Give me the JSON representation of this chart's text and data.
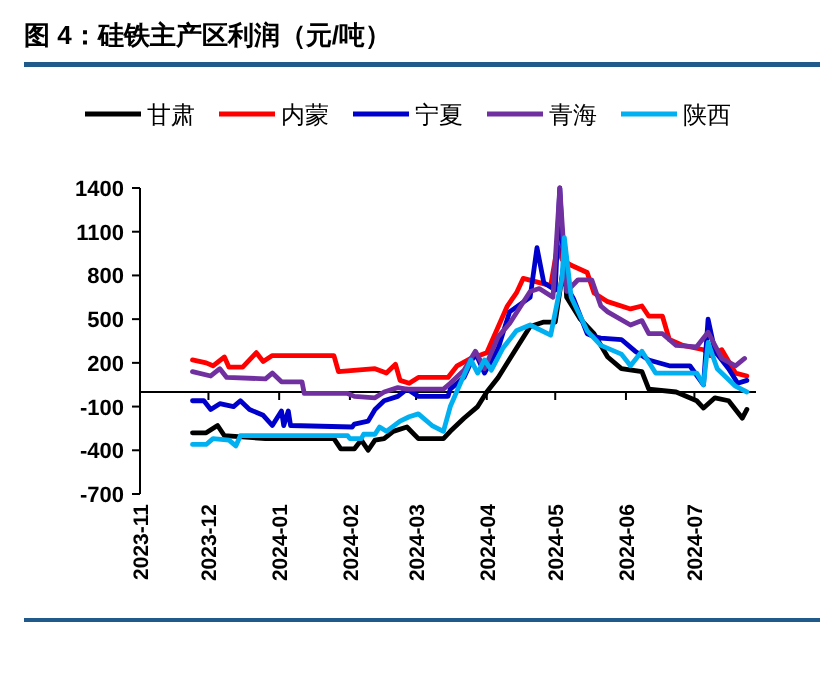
{
  "chart_data": {
    "type": "line",
    "title": "图 4：硅铁主产区利润（元/吨）",
    "legend": "top",
    "line_style": "solid",
    "marker": "none",
    "grid": false,
    "ylim": [
      -700,
      1400
    ],
    "yticks": [
      -700,
      -400,
      -100,
      200,
      500,
      800,
      1100,
      1400
    ],
    "xlim": [
      "2023-11-01",
      "2024-07-28"
    ],
    "xticks": [
      {
        "value": "2023-11-01",
        "label": "2023-11"
      },
      {
        "value": "2023-12-01",
        "label": "2023-12"
      },
      {
        "value": "2024-01-01",
        "label": "2024-01"
      },
      {
        "value": "2024-02-01",
        "label": "2024-02"
      },
      {
        "value": "2024-03-01",
        "label": "2024-03"
      },
      {
        "value": "2024-04-01",
        "label": "2024-04"
      },
      {
        "value": "2024-05-01",
        "label": "2024-05"
      },
      {
        "value": "2024-06-01",
        "label": "2024-06"
      },
      {
        "value": "2024-07-01",
        "label": "2024-07"
      }
    ],
    "series": [
      {
        "name": "甘肃",
        "color": "#000000",
        "x": [
          "2023-11-24",
          "2023-11-30",
          "2023-12-05",
          "2023-12-08",
          "2023-12-26",
          "2024-01-25",
          "2024-01-28",
          "2024-02-03",
          "2024-02-06",
          "2024-02-09",
          "2024-02-12",
          "2024-02-16",
          "2024-02-20",
          "2024-02-26",
          "2024-03-02",
          "2024-03-13",
          "2024-03-16",
          "2024-03-22",
          "2024-03-28",
          "2024-04-01",
          "2024-04-06",
          "2024-04-14",
          "2024-04-20",
          "2024-04-26",
          "2024-05-01",
          "2024-05-05",
          "2024-05-06",
          "2024-05-12",
          "2024-05-18",
          "2024-05-24",
          "2024-05-30",
          "2024-06-08",
          "2024-06-11",
          "2024-06-23",
          "2024-07-02",
          "2024-07-05",
          "2024-07-10",
          "2024-07-16",
          "2024-07-22",
          "2024-07-24"
        ],
        "values": [
          -280,
          -280,
          -230,
          -300,
          -320,
          -320,
          -390,
          -390,
          -330,
          -400,
          -330,
          -320,
          -270,
          -240,
          -320,
          -320,
          -270,
          -180,
          -100,
          0,
          100,
          300,
          450,
          480,
          480,
          900,
          650,
          500,
          400,
          240,
          160,
          140,
          20,
          0,
          -60,
          -110,
          -40,
          -60,
          -180,
          -120
        ]
      },
      {
        "name": "内蒙",
        "color": "#ff0000",
        "x": [
          "2023-11-24",
          "2023-11-30",
          "2023-12-03",
          "2023-12-08",
          "2023-12-10",
          "2023-12-16",
          "2023-12-22",
          "2023-12-25",
          "2023-12-29",
          "2024-01-25",
          "2024-01-27",
          "2024-02-12",
          "2024-02-17",
          "2024-02-21",
          "2024-02-23",
          "2024-02-27",
          "2024-03-02",
          "2024-03-15",
          "2024-03-19",
          "2024-03-25",
          "2024-04-01",
          "2024-04-10",
          "2024-04-14",
          "2024-04-17",
          "2024-04-29",
          "2024-05-02",
          "2024-05-04",
          "2024-05-08",
          "2024-05-15",
          "2024-05-18",
          "2024-05-24",
          "2024-06-03",
          "2024-06-08",
          "2024-06-11",
          "2024-06-17",
          "2024-06-20",
          "2024-06-26",
          "2024-07-05",
          "2024-07-08",
          "2024-07-13",
          "2024-07-19",
          "2024-07-24"
        ],
        "values": [
          220,
          200,
          180,
          240,
          170,
          170,
          270,
          210,
          250,
          250,
          140,
          160,
          130,
          190,
          80,
          60,
          100,
          100,
          180,
          230,
          270,
          590,
          680,
          780,
          730,
          1000,
          910,
          870,
          820,
          680,
          620,
          570,
          590,
          520,
          520,
          360,
          320,
          290,
          250,
          290,
          130,
          110
        ]
      },
      {
        "name": "宁夏",
        "color": "#0000cc",
        "x": [
          "2023-11-24",
          "2023-11-29",
          "2023-12-02",
          "2023-12-06",
          "2023-12-12",
          "2023-12-15",
          "2023-12-19",
          "2023-12-25",
          "2023-12-29",
          "2024-01-02",
          "2024-01-03",
          "2024-01-05",
          "2024-01-06",
          "2024-02-02",
          "2024-02-03",
          "2024-02-09",
          "2024-02-12",
          "2024-02-16",
          "2024-02-22",
          "2024-02-26",
          "2024-03-02",
          "2024-03-15",
          "2024-03-16",
          "2024-03-22",
          "2024-03-27",
          "2024-03-31",
          "2024-04-06",
          "2024-04-11",
          "2024-04-20",
          "2024-04-23",
          "2024-04-26",
          "2024-05-01",
          "2024-05-03",
          "2024-05-05",
          "2024-05-09",
          "2024-05-15",
          "2024-05-18",
          "2024-05-21",
          "2024-05-30",
          "2024-06-05",
          "2024-06-11",
          "2024-06-20",
          "2024-06-29",
          "2024-07-05",
          "2024-07-07",
          "2024-07-10",
          "2024-07-16",
          "2024-07-20",
          "2024-07-24"
        ],
        "values": [
          -60,
          -60,
          -120,
          -80,
          -100,
          -60,
          -120,
          -160,
          -230,
          -130,
          -230,
          -130,
          -230,
          -240,
          -220,
          -200,
          -120,
          -60,
          -30,
          20,
          -30,
          -30,
          20,
          100,
          270,
          130,
          300,
          550,
          650,
          990,
          750,
          700,
          1400,
          750,
          640,
          400,
          380,
          370,
          360,
          280,
          220,
          180,
          180,
          50,
          500,
          280,
          160,
          60,
          80
        ]
      },
      {
        "name": "青海",
        "color": "#7030a0",
        "x": [
          "2023-11-24",
          "2023-12-02",
          "2023-12-06",
          "2023-12-09",
          "2023-12-26",
          "2023-12-29",
          "2024-01-02",
          "2024-01-11",
          "2024-01-12",
          "2024-01-31",
          "2024-02-03",
          "2024-02-12",
          "2024-02-16",
          "2024-02-22",
          "2024-02-26",
          "2024-03-02",
          "2024-03-13",
          "2024-03-16",
          "2024-03-22",
          "2024-03-27",
          "2024-03-31",
          "2024-04-06",
          "2024-04-11",
          "2024-04-20",
          "2024-04-24",
          "2024-04-30",
          "2024-05-03",
          "2024-05-06",
          "2024-05-11",
          "2024-05-17",
          "2024-05-21",
          "2024-05-24",
          "2024-06-03",
          "2024-06-08",
          "2024-06-11",
          "2024-06-17",
          "2024-06-23",
          "2024-07-02",
          "2024-07-07",
          "2024-07-13",
          "2024-07-19",
          "2024-07-23"
        ],
        "values": [
          140,
          110,
          160,
          100,
          90,
          130,
          70,
          70,
          -10,
          -10,
          -30,
          -40,
          0,
          30,
          20,
          20,
          20,
          60,
          150,
          280,
          160,
          380,
          470,
          690,
          710,
          650,
          1400,
          690,
          770,
          770,
          590,
          550,
          460,
          490,
          400,
          400,
          320,
          310,
          410,
          230,
          180,
          230
        ]
      },
      {
        "name": "陕西",
        "color": "#00b0f0",
        "x": [
          "2023-11-24",
          "2023-11-30",
          "2023-12-03",
          "2023-12-10",
          "2023-12-13",
          "2023-12-15",
          "2023-12-20",
          "2024-01-31",
          "2024-02-01",
          "2024-02-06",
          "2024-02-07",
          "2024-02-12",
          "2024-02-14",
          "2024-02-17",
          "2024-02-23",
          "2024-02-27",
          "2024-03-02",
          "2024-03-08",
          "2024-03-13",
          "2024-03-16",
          "2024-03-21",
          "2024-03-25",
          "2024-03-28",
          "2024-03-31",
          "2024-04-03",
          "2024-04-08",
          "2024-04-14",
          "2024-04-20",
          "2024-04-29",
          "2024-05-04",
          "2024-05-05",
          "2024-05-08",
          "2024-05-15",
          "2024-05-21",
          "2024-05-30",
          "2024-06-03",
          "2024-06-08",
          "2024-06-14",
          "2024-06-23",
          "2024-07-02",
          "2024-07-05",
          "2024-07-07",
          "2024-07-11",
          "2024-07-19",
          "2024-07-24"
        ],
        "values": [
          -360,
          -360,
          -320,
          -330,
          -370,
          -300,
          -300,
          -300,
          -320,
          -320,
          -290,
          -290,
          -240,
          -270,
          -200,
          -170,
          -150,
          -230,
          -270,
          -100,
          80,
          220,
          130,
          220,
          150,
          300,
          420,
          460,
          390,
          780,
          1060,
          650,
          420,
          320,
          260,
          180,
          280,
          130,
          130,
          130,
          50,
          340,
          160,
          40,
          0
        ]
      }
    ]
  }
}
